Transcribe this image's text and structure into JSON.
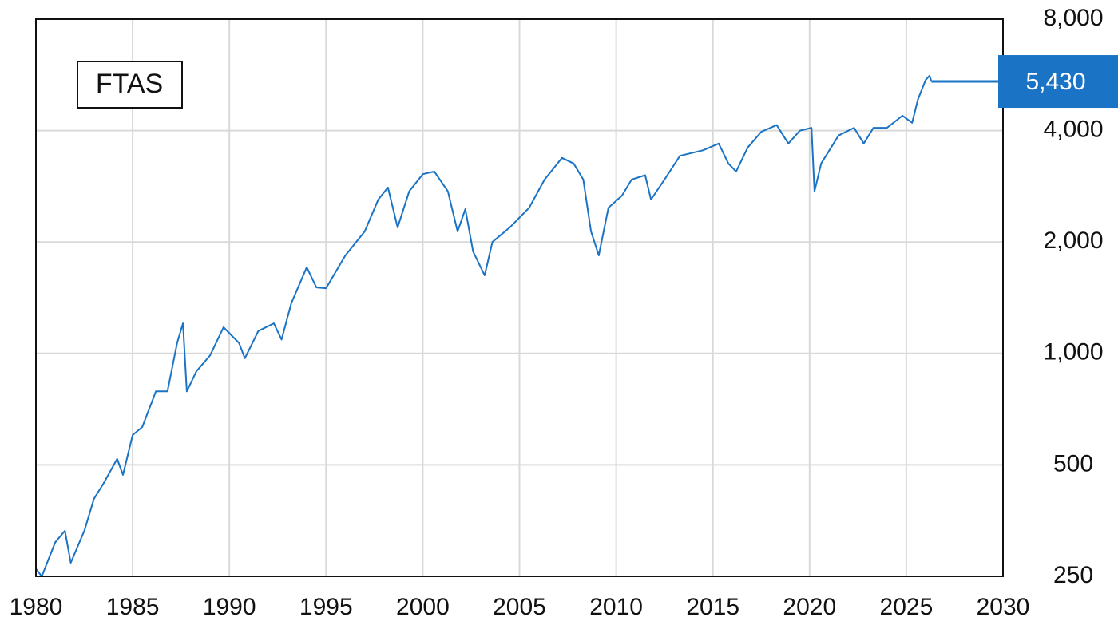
{
  "chart_data": {
    "type": "line",
    "log_scale_y": true,
    "grid": true,
    "y_axis_side": "right",
    "series": [
      {
        "name": "FTAS",
        "color": "#1a73c4",
        "x": [
          1980.0,
          1980.3,
          1981.0,
          1981.5,
          1981.8,
          1982.5,
          1983.0,
          1983.5,
          1984.2,
          1984.5,
          1985.0,
          1985.5,
          1986.2,
          1986.8,
          1987.3,
          1987.6,
          1987.8,
          1988.3,
          1989.0,
          1989.7,
          1990.5,
          1990.8,
          1991.5,
          1992.3,
          1992.7,
          1993.2,
          1994.0,
          1994.5,
          1995.0,
          1996.0,
          1997.0,
          1997.7,
          1998.2,
          1998.7,
          1999.3,
          2000.0,
          2000.6,
          2001.3,
          2001.8,
          2002.2,
          2002.6,
          2003.2,
          2003.6,
          2004.5,
          2005.5,
          2006.3,
          2007.2,
          2007.8,
          2008.3,
          2008.7,
          2009.1,
          2009.6,
          2010.3,
          2010.8,
          2011.5,
          2011.8,
          2012.5,
          2013.3,
          2014.5,
          2015.3,
          2015.8,
          2016.2,
          2016.8,
          2017.5,
          2018.3,
          2018.9,
          2019.5,
          2020.1,
          2020.25,
          2020.6,
          2021.5,
          2022.3,
          2022.8,
          2023.3,
          2024.0,
          2024.8,
          2025.3,
          2025.6,
          2026.0,
          2026.2,
          2026.3
        ],
        "values": [
          262,
          250,
          309,
          332,
          272,
          332,
          405,
          446,
          519,
          470,
          602,
          633,
          790,
          790,
          1067,
          1206,
          790,
          895,
          987,
          1177,
          1067,
          970,
          1150,
          1206,
          1090,
          1365,
          1710,
          1508,
          1500,
          1840,
          2135,
          2605,
          2808,
          2190,
          2740,
          3050,
          3100,
          2740,
          2135,
          2455,
          1885,
          1625,
          2000,
          2190,
          2475,
          2950,
          3375,
          3260,
          2950,
          2135,
          1840,
          2475,
          2670,
          2950,
          3030,
          2605,
          2950,
          3420,
          3540,
          3690,
          3260,
          3100,
          3600,
          3970,
          4140,
          3690,
          4000,
          4070,
          2740,
          3260,
          3880,
          4070,
          3690,
          4070,
          4070,
          4390,
          4200,
          4850,
          5480,
          5630,
          5430
        ]
      }
    ],
    "current_value": 5430,
    "current_value_label": "5,430",
    "xlim": [
      1980,
      2030
    ],
    "xticks": [
      1980,
      1985,
      1990,
      1995,
      2000,
      2005,
      2010,
      2015,
      2020,
      2025,
      2030
    ],
    "ylim": [
      250,
      8000
    ],
    "yticks": [
      250,
      500,
      {
        "value": 1000,
        "label": "1,000"
      },
      {
        "value": 2000,
        "label": "2,000"
      },
      {
        "value": 4000,
        "label": "4,000"
      },
      {
        "value": 8000,
        "label": "8,000"
      }
    ]
  }
}
